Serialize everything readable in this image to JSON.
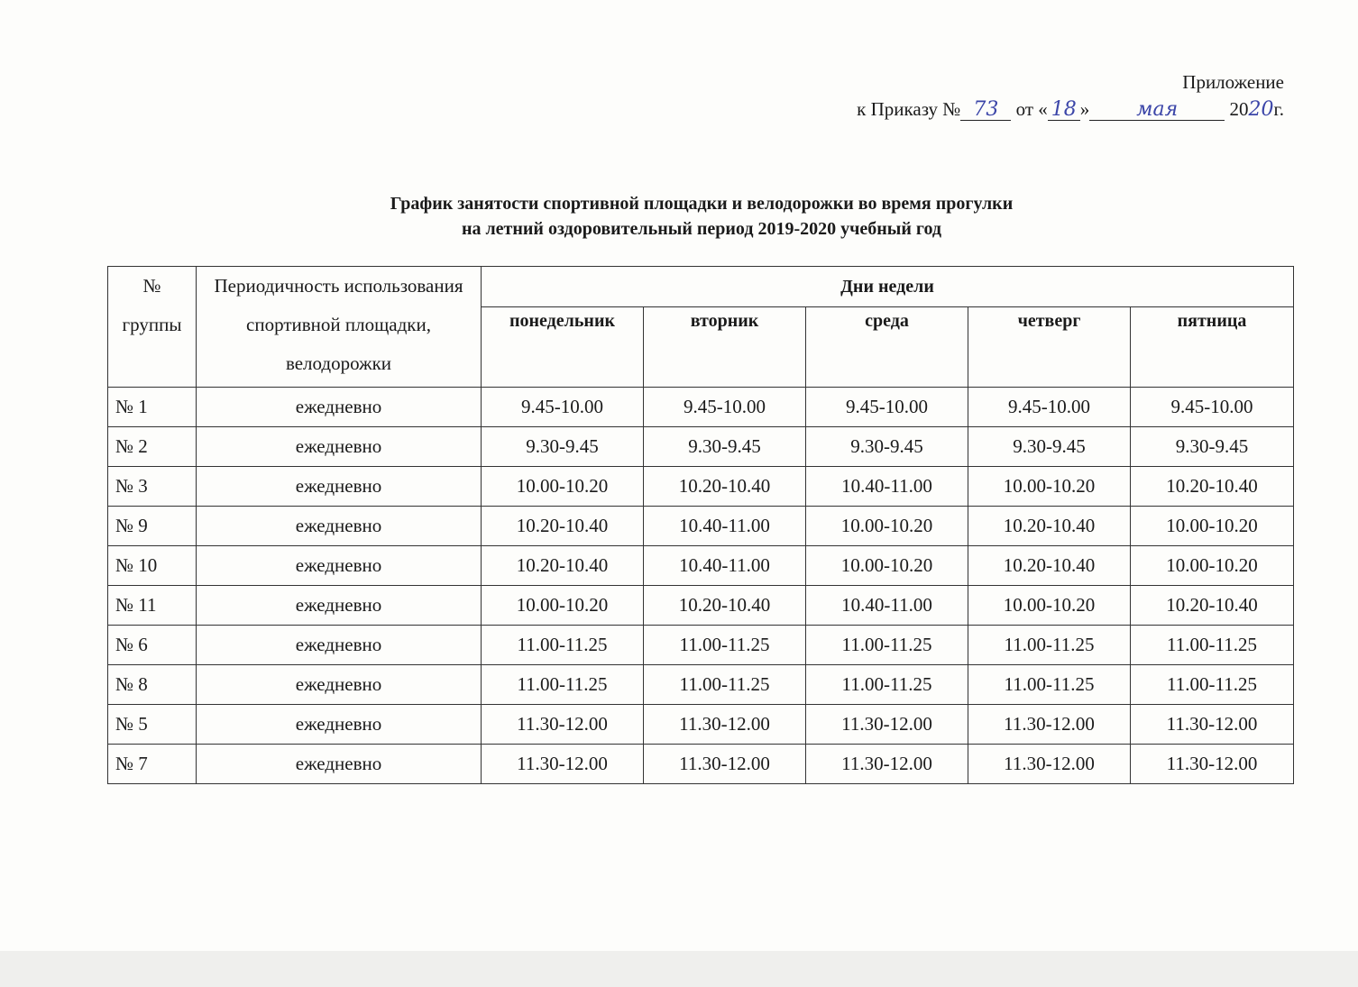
{
  "appendix": {
    "line1": "Приложение",
    "prefix": "к Приказу №",
    "order_number": "73",
    "from": "от «",
    "day": "18",
    "close_quote": "»",
    "month": "мая",
    "year_prefix": "20",
    "year_suffix": "20",
    "year_end": "г."
  },
  "title": {
    "line1": "График занятости спортивной площадки и велодорожки во время прогулки",
    "line2": "на летний оздоровительный период 2019-2020 учебный год"
  },
  "table": {
    "col_group": "№ группы",
    "col_period": "Периодичность использования спортивной площадки, велодорожки",
    "col_days": "Дни недели",
    "days": [
      "понедельник",
      "вторник",
      "среда",
      "четверг",
      "пятница"
    ],
    "rows": [
      {
        "group": "№ 1",
        "period": "ежедневно",
        "times": [
          "9.45-10.00",
          "9.45-10.00",
          "9.45-10.00",
          "9.45-10.00",
          "9.45-10.00"
        ]
      },
      {
        "group": "№ 2",
        "period": "ежедневно",
        "times": [
          "9.30-9.45",
          "9.30-9.45",
          "9.30-9.45",
          "9.30-9.45",
          "9.30-9.45"
        ]
      },
      {
        "group": "№ 3",
        "period": "ежедневно",
        "times": [
          "10.00-10.20",
          "10.20-10.40",
          "10.40-11.00",
          "10.00-10.20",
          "10.20-10.40"
        ]
      },
      {
        "group": "№ 9",
        "period": "ежедневно",
        "times": [
          "10.20-10.40",
          "10.40-11.00",
          "10.00-10.20",
          "10.20-10.40",
          "10.00-10.20"
        ]
      },
      {
        "group": "№ 10",
        "period": "ежедневно",
        "times": [
          "10.20-10.40",
          "10.40-11.00",
          "10.00-10.20",
          "10.20-10.40",
          "10.00-10.20"
        ]
      },
      {
        "group": "№ 11",
        "period": "ежедневно",
        "times": [
          "10.00-10.20",
          "10.20-10.40",
          "10.40-11.00",
          "10.00-10.20",
          "10.20-10.40"
        ]
      },
      {
        "group": "№ 6",
        "period": "ежедневно",
        "times": [
          "11.00-11.25",
          "11.00-11.25",
          "11.00-11.25",
          "11.00-11.25",
          "11.00-11.25"
        ]
      },
      {
        "group": "№ 8",
        "period": "ежедневно",
        "times": [
          "11.00-11.25",
          "11.00-11.25",
          "11.00-11.25",
          "11.00-11.25",
          "11.00-11.25"
        ]
      },
      {
        "group": "№ 5",
        "period": "ежедневно",
        "times": [
          "11.30-12.00",
          "11.30-12.00",
          "11.30-12.00",
          "11.30-12.00",
          "11.30-12.00"
        ]
      },
      {
        "group": "№ 7",
        "period": "ежедневно",
        "times": [
          "11.30-12.00",
          "11.30-12.00",
          "11.30-12.00",
          "11.30-12.00",
          "11.30-12.00"
        ]
      }
    ]
  }
}
